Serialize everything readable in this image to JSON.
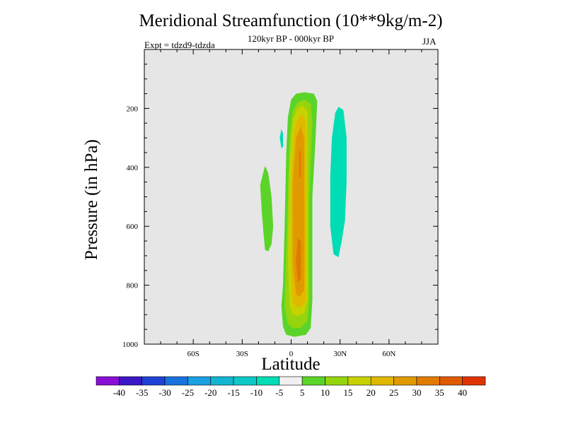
{
  "chart_data": {
    "type": "contour",
    "title": "Meridional Streamfunction (10**9kg/m-2)",
    "subtitle": "120kyr BP - 000kyr BP",
    "experiment": "Expt = tdzd9-tdzda",
    "season": "JJA",
    "xlabel": "Latitude",
    "ylabel": "Pressure (in hPa)",
    "xlim": [
      -90,
      90
    ],
    "ylim": [
      0,
      1000
    ],
    "y_reversed": true,
    "xticks": [
      {
        "value": -60,
        "label": "60S"
      },
      {
        "value": -30,
        "label": "30S"
      },
      {
        "value": 0,
        "label": "0"
      },
      {
        "value": 30,
        "label": "30N"
      },
      {
        "value": 60,
        "label": "60N"
      }
    ],
    "yticks": [
      {
        "value": 200,
        "label": "200"
      },
      {
        "value": 400,
        "label": "400"
      },
      {
        "value": 600,
        "label": "600"
      },
      {
        "value": 800,
        "label": "800"
      },
      {
        "value": 1000,
        "label": "1000"
      }
    ],
    "background_color": "#e6e6e6",
    "colorbar": {
      "colors": [
        "#8a0ed6",
        "#3b17c6",
        "#1f41d6",
        "#1a72dc",
        "#1a9fe0",
        "#14b5d0",
        "#0ec8c8",
        "#00dcb4",
        "#f0f0f0",
        "#5ad428",
        "#96d40e",
        "#c8d200",
        "#e0b800",
        "#e09a00",
        "#e07a00",
        "#e05a00",
        "#e03200"
      ],
      "labels": [
        "-40",
        "-35",
        "-30",
        "-25",
        "-20",
        "-15",
        "-10",
        "-5",
        "5",
        "10",
        "15",
        "20",
        "25",
        "30",
        "35",
        "40"
      ]
    },
    "contours": [
      {
        "name": "positive-5",
        "color": "#5ad428",
        "points": [
          [
            8,
            145
          ],
          [
            14,
            150
          ],
          [
            16,
            175
          ],
          [
            15,
            300
          ],
          [
            13,
            500
          ],
          [
            13,
            700
          ],
          [
            13,
            850
          ],
          [
            12,
            945
          ],
          [
            9,
            968
          ],
          [
            2,
            975
          ],
          [
            -3,
            968
          ],
          [
            -5,
            940
          ],
          [
            -6,
            870
          ],
          [
            -5,
            800
          ],
          [
            -4,
            600
          ],
          [
            -3,
            350
          ],
          [
            -2,
            230
          ],
          [
            0,
            170
          ],
          [
            3,
            150
          ]
        ]
      },
      {
        "name": "positive-10",
        "color": "#96d40e",
        "points": [
          [
            8,
            170
          ],
          [
            12,
            185
          ],
          [
            13,
            250
          ],
          [
            11,
            500
          ],
          [
            11,
            700
          ],
          [
            11,
            850
          ],
          [
            10,
            920
          ],
          [
            6,
            945
          ],
          [
            1,
            945
          ],
          [
            -2,
            930
          ],
          [
            -4,
            870
          ],
          [
            -3,
            700
          ],
          [
            -2,
            500
          ],
          [
            -1,
            300
          ],
          [
            1,
            210
          ],
          [
            4,
            180
          ]
        ]
      },
      {
        "name": "positive-15",
        "color": "#c8d200",
        "points": [
          [
            7,
            190
          ],
          [
            10,
            210
          ],
          [
            10,
            500
          ],
          [
            10,
            850
          ],
          [
            8,
            895
          ],
          [
            4,
            905
          ],
          [
            1,
            900
          ],
          [
            -1,
            870
          ],
          [
            -2,
            700
          ],
          [
            -1,
            400
          ],
          [
            1,
            240
          ],
          [
            4,
            200
          ]
        ]
      },
      {
        "name": "positive-20",
        "color": "#e0b800",
        "points": [
          [
            7,
            220
          ],
          [
            9,
            250
          ],
          [
            9,
            500
          ],
          [
            9,
            850
          ],
          [
            7,
            870
          ],
          [
            4,
            875
          ],
          [
            1,
            860
          ],
          [
            0,
            750
          ],
          [
            0,
            450
          ],
          [
            2,
            280
          ],
          [
            4,
            235
          ]
        ]
      },
      {
        "name": "positive-25",
        "color": "#e09a00",
        "points": [
          [
            6,
            260
          ],
          [
            8,
            300
          ],
          [
            8,
            500
          ],
          [
            8,
            820
          ],
          [
            5,
            840
          ],
          [
            3,
            830
          ],
          [
            1,
            720
          ],
          [
            1,
            450
          ],
          [
            3,
            300
          ]
        ]
      },
      {
        "name": "positive-30-upper",
        "color": "#e07a00",
        "points": [
          [
            5,
            340
          ],
          [
            6,
            350
          ],
          [
            6,
            430
          ],
          [
            5,
            440
          ],
          [
            5,
            380
          ]
        ]
      },
      {
        "name": "positive-30-lower",
        "color": "#e07a00",
        "points": [
          [
            4,
            640
          ],
          [
            6,
            650
          ],
          [
            6,
            780
          ],
          [
            4,
            790
          ],
          [
            3,
            720
          ]
        ]
      },
      {
        "name": "positive-5-south-island",
        "color": "#5ad428",
        "points": [
          [
            -16,
            395
          ],
          [
            -14,
            420
          ],
          [
            -12,
            500
          ],
          [
            -11,
            600
          ],
          [
            -12,
            660
          ],
          [
            -14,
            685
          ],
          [
            -16,
            680
          ],
          [
            -17,
            620
          ],
          [
            -18,
            550
          ],
          [
            -19,
            460
          ]
        ]
      },
      {
        "name": "negative-5-north",
        "color": "#00dcb4",
        "points": [
          [
            29,
            195
          ],
          [
            32,
            205
          ],
          [
            34,
            300
          ],
          [
            34,
            450
          ],
          [
            33,
            580
          ],
          [
            31,
            650
          ],
          [
            29,
            705
          ],
          [
            26,
            695
          ],
          [
            24,
            600
          ],
          [
            24,
            430
          ],
          [
            25,
            300
          ],
          [
            27,
            215
          ]
        ]
      },
      {
        "name": "negative-5-south-small",
        "color": "#00dcb4",
        "points": [
          [
            -6,
            270
          ],
          [
            -5,
            285
          ],
          [
            -5,
            330
          ],
          [
            -6,
            335
          ],
          [
            -7,
            300
          ]
        ]
      }
    ]
  }
}
